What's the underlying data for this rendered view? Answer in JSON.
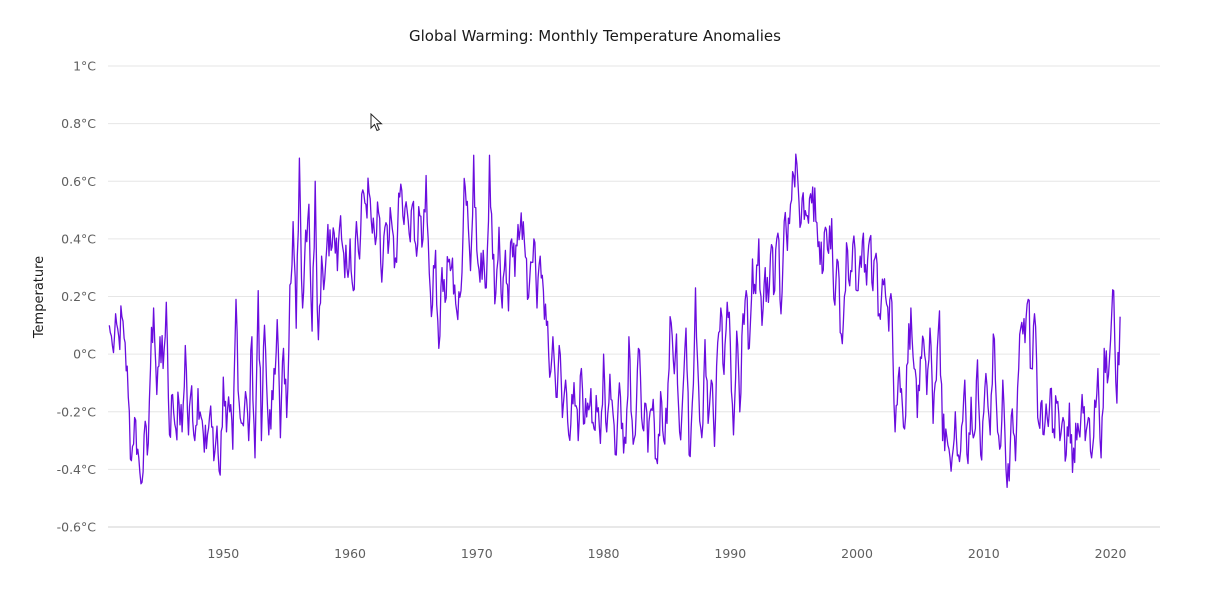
{
  "chart_data": {
    "type": "line",
    "title": "Global Warming: Monthly Temperature Anomalies",
    "xlabel": "",
    "ylabel": "Temperature",
    "y_unit_suffix": "°C",
    "xlim": [
      1940.9,
      2023.9
    ],
    "ylim": [
      -0.6,
      1.0
    ],
    "yticks": [
      1,
      0.8,
      0.6,
      0.4,
      0.2,
      0,
      -0.2,
      -0.4,
      -0.6
    ],
    "ytick_labels": [
      "1°C",
      "0.8°C",
      "0.6°C",
      "0.4°C",
      "0.2°C",
      "0°C",
      "-0.2°C",
      "-0.4°C",
      "-0.6°C"
    ],
    "xticks": [
      1950,
      1960,
      1970,
      1980,
      1990,
      2000,
      2010,
      2020
    ],
    "xtick_labels": [
      "1950",
      "1960",
      "1970",
      "1980",
      "1990",
      "2000",
      "2010",
      "2020"
    ],
    "grid": true,
    "legend": "none",
    "series": [
      {
        "name": "Temperature",
        "color": "#6a0dde",
        "x_start": 1941.0,
        "x_step": 0.25,
        "values": [
          0.1,
          0.03,
          0.14,
          0.06,
          0.13,
          0.04,
          -0.15,
          -0.37,
          -0.22,
          -0.33,
          -0.45,
          -0.28,
          -0.35,
          -0.05,
          0.16,
          -0.14,
          0.06,
          -0.05,
          0.18,
          -0.28,
          -0.14,
          -0.26,
          -0.17,
          -0.27,
          0.03,
          -0.28,
          -0.11,
          -0.3,
          -0.12,
          -0.22,
          -0.34,
          -0.28,
          -0.18,
          -0.37,
          -0.25,
          -0.42,
          -0.08,
          -0.27,
          -0.2,
          -0.33,
          0.19,
          -0.17,
          -0.24,
          -0.13,
          -0.3,
          0.06,
          -0.36,
          0.22,
          -0.3,
          0.1,
          -0.2,
          -0.26,
          -0.05,
          0.12,
          -0.29,
          0.02,
          -0.22,
          0.24,
          0.46,
          0.09,
          0.68,
          0.16,
          0.43,
          0.52,
          0.08,
          0.6,
          0.05,
          0.34,
          0.26,
          0.45,
          0.36,
          0.42,
          0.29,
          0.48,
          0.35,
          0.3,
          0.4,
          0.22,
          0.46,
          0.33,
          0.57,
          0.52,
          0.56,
          0.42,
          0.38,
          0.49,
          0.25,
          0.44,
          0.35,
          0.47,
          0.3,
          0.43,
          0.59,
          0.45,
          0.5,
          0.39,
          0.53,
          0.34,
          0.48,
          0.4,
          0.62,
          0.28,
          0.17,
          0.36,
          0.02,
          0.3,
          0.18,
          0.32,
          0.3,
          0.24,
          0.12,
          0.22,
          0.61,
          0.53,
          0.29,
          0.69,
          0.36,
          0.25,
          0.36,
          0.23,
          0.69,
          0.33,
          0.21,
          0.44,
          0.16,
          0.36,
          0.15,
          0.4,
          0.27,
          0.45,
          0.49,
          0.39,
          0.19,
          0.32,
          0.4,
          0.16,
          0.34,
          0.22,
          0.1,
          -0.08,
          0.06,
          -0.15,
          0.03,
          -0.22,
          -0.09,
          -0.28,
          -0.14,
          -0.18,
          -0.3,
          -0.05,
          -0.24,
          -0.17,
          -0.12,
          -0.26,
          -0.2,
          -0.31,
          0.0,
          -0.27,
          -0.07,
          -0.21,
          -0.35,
          -0.1,
          -0.24,
          -0.31,
          0.06,
          -0.23,
          -0.28,
          0.02,
          -0.22,
          -0.17,
          -0.34,
          -0.19,
          -0.24,
          -0.38,
          -0.13,
          -0.3,
          -0.24,
          0.13,
          -0.02,
          0.07,
          -0.27,
          -0.14,
          0.09,
          -0.35,
          -0.17,
          0.23,
          -0.11,
          -0.29,
          0.05,
          -0.24,
          -0.09,
          -0.32,
          0.04,
          0.16,
          -0.07,
          0.18,
          0.04,
          -0.28,
          0.08,
          -0.2,
          0.14,
          0.22,
          0.02,
          0.33,
          0.21,
          0.4,
          0.1,
          0.3,
          0.18,
          0.38,
          0.22,
          0.42,
          0.14,
          0.46,
          0.36,
          0.52,
          0.62,
          0.66,
          0.44,
          0.56,
          0.48,
          0.54,
          0.58,
          0.46,
          0.39,
          0.28,
          0.44,
          0.35,
          0.47,
          0.17,
          0.32,
          0.07,
          0.2,
          0.36,
          0.29,
          0.41,
          0.22,
          0.34,
          0.42,
          0.24,
          0.4,
          0.22,
          0.35,
          0.14,
          0.26,
          0.2,
          0.08,
          0.18,
          -0.27,
          -0.08,
          -0.12,
          -0.26,
          -0.03,
          0.16,
          -0.05,
          -0.22,
          -0.01,
          0.05,
          -0.14,
          0.09,
          -0.24,
          -0.09,
          0.15,
          -0.3,
          -0.26,
          -0.33,
          -0.36,
          -0.2,
          -0.35,
          -0.25,
          -0.09,
          -0.38,
          -0.15,
          -0.28,
          -0.02,
          -0.35,
          -0.2,
          -0.11,
          -0.28,
          0.07,
          -0.18,
          -0.33,
          -0.09,
          -0.4,
          -0.44,
          -0.19,
          -0.37,
          -0.05,
          0.11,
          0.04,
          0.19,
          -0.05,
          0.14,
          -0.22,
          -0.17,
          -0.28,
          -0.22,
          -0.12,
          -0.26,
          -0.17,
          -0.3,
          -0.22,
          -0.35,
          -0.17,
          -0.41,
          -0.24,
          -0.27,
          -0.14,
          -0.3,
          -0.22,
          -0.36,
          -0.16,
          -0.05,
          -0.36,
          0.02,
          -0.1,
          0.05,
          0.22,
          -0.17,
          0.13
        ]
      }
    ]
  },
  "ui": {
    "cursor": "mouse-pointer"
  }
}
